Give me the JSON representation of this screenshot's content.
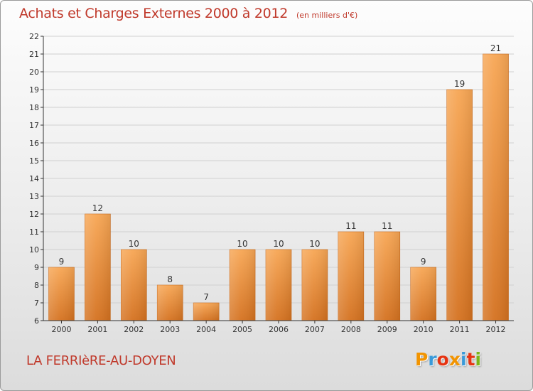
{
  "header": {
    "title": "Achats et Charges Externes 2000 à 2012",
    "subtitle": "(en milliers d'€)"
  },
  "footer": {
    "commune": "LA FERRIèRE-AU-DOYEN",
    "logo": "Proxiti"
  },
  "colors": {
    "title": "#c0392b",
    "bar_light": "#f7a654",
    "bar_dark": "#d4711f",
    "axis": "#333333",
    "grid": "#d0d0d0",
    "logo_letters": [
      "#f29400",
      "#3a9ad9",
      "#e63312",
      "#f29400",
      "#3a9ad9",
      "#e63312",
      "#7cb518"
    ]
  },
  "chart_data": {
    "type": "bar",
    "title": "Achats et Charges Externes 2000 à 2012",
    "subtitle": "(en milliers d'€)",
    "xlabel": "",
    "ylabel": "",
    "categories": [
      "2000",
      "2001",
      "2002",
      "2003",
      "2004",
      "2005",
      "2006",
      "2007",
      "2008",
      "2009",
      "2010",
      "2011",
      "2012"
    ],
    "values": [
      9,
      12,
      10,
      8,
      7,
      10,
      10,
      10,
      11,
      11,
      9,
      19,
      21
    ],
    "ylim": [
      6,
      22
    ],
    "yticks": [
      6,
      7,
      8,
      9,
      10,
      11,
      12,
      13,
      14,
      15,
      16,
      17,
      18,
      19,
      20,
      21,
      22
    ],
    "grid": true,
    "data_labels": true,
    "legend": "none"
  }
}
